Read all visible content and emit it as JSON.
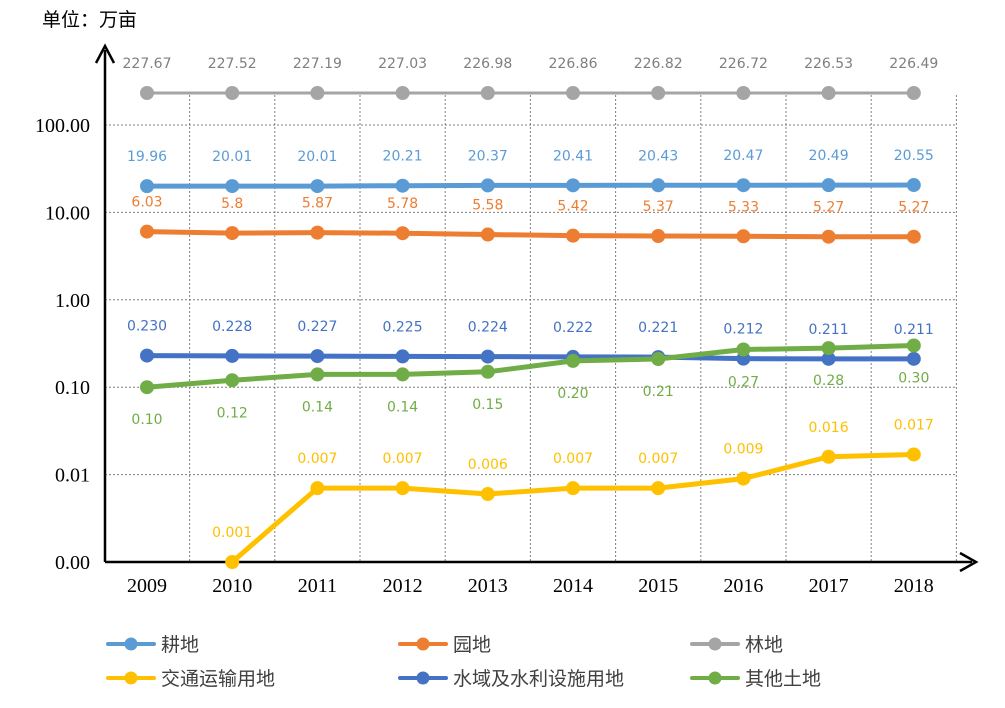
{
  "chart_data": {
    "type": "line",
    "title": "",
    "unit_label": "单位：万亩",
    "xlabel": "",
    "ylabel": "",
    "y_scale": "log",
    "ylim": [
      0.001,
      100
    ],
    "grid": true,
    "legend_position": "bottom",
    "categories": [
      "2009",
      "2010",
      "2011",
      "2012",
      "2013",
      "2014",
      "2015",
      "2016",
      "2017",
      "2018"
    ],
    "y_ticks": [
      {
        "value": 0.001,
        "label": "0.00"
      },
      {
        "value": 0.01,
        "label": "0.01"
      },
      {
        "value": 0.1,
        "label": "0.10"
      },
      {
        "value": 1,
        "label": "1.00"
      },
      {
        "value": 10,
        "label": "10.00"
      },
      {
        "value": 100,
        "label": "100.00"
      }
    ],
    "series": [
      {
        "name": "耕地",
        "color": "#5b9bd5",
        "label_pos": "above",
        "values": [
          19.96,
          20.01,
          20.01,
          20.21,
          20.37,
          20.41,
          20.43,
          20.47,
          20.49,
          20.55
        ],
        "labels": [
          "19.96",
          "20.01",
          "20.01",
          "20.21",
          "20.37",
          "20.41",
          "20.43",
          "20.47",
          "20.49",
          "20.55"
        ]
      },
      {
        "name": "园地",
        "color": "#ed7d31",
        "label_pos": "above",
        "values": [
          6.03,
          5.8,
          5.87,
          5.78,
          5.58,
          5.42,
          5.37,
          5.33,
          5.27,
          5.27
        ],
        "labels": [
          "6.03",
          "5.8",
          "5.87",
          "5.78",
          "5.58",
          "5.42",
          "5.37",
          "5.33",
          "5.27",
          "5.27"
        ]
      },
      {
        "name": "林地",
        "color": "#a5a5a5",
        "label_pos": "above",
        "plot_mode": "top_band",
        "values": [
          227.67,
          227.52,
          227.19,
          227.03,
          226.98,
          226.86,
          226.82,
          226.72,
          226.53,
          226.49
        ],
        "labels": [
          "227.67",
          "227.52",
          "227.19",
          "227.03",
          "226.98",
          "226.86",
          "226.82",
          "226.72",
          "226.53",
          "226.49"
        ]
      },
      {
        "name": "交通运输用地",
        "color": "#ffc000",
        "label_pos": "above",
        "values": [
          null,
          0.001,
          0.007,
          0.007,
          0.006,
          0.007,
          0.007,
          0.009,
          0.016,
          0.017
        ],
        "labels": [
          null,
          "0.001",
          "0.007",
          "0.007",
          "0.006",
          "0.007",
          "0.007",
          "0.009",
          "0.016",
          "0.017"
        ]
      },
      {
        "name": "水域及水利设施用地",
        "color": "#4472c4",
        "label_pos": "above",
        "values": [
          0.23,
          0.228,
          0.227,
          0.225,
          0.224,
          0.222,
          0.221,
          0.212,
          0.211,
          0.211
        ],
        "labels": [
          "0.230",
          "0.228",
          "0.227",
          "0.225",
          "0.224",
          "0.222",
          "0.221",
          "0.212",
          "0.211",
          "0.211"
        ]
      },
      {
        "name": "其他土地",
        "color": "#70ad47",
        "label_pos": "below",
        "values": [
          0.1,
          0.12,
          0.14,
          0.14,
          0.15,
          0.2,
          0.21,
          0.27,
          0.28,
          0.3
        ],
        "labels": [
          "0.10",
          "0.12",
          "0.14",
          "0.14",
          "0.15",
          "0.20",
          "0.21",
          "0.27",
          "0.28",
          "0.30"
        ]
      }
    ],
    "legend": [
      {
        "name": "耕地",
        "color": "#5b9bd5"
      },
      {
        "name": "园地",
        "color": "#ed7d31"
      },
      {
        "name": "林地",
        "color": "#a5a5a5"
      },
      {
        "name": "交通运输用地",
        "color": "#ffc000"
      },
      {
        "name": "水域及水利设施用地",
        "color": "#4472c4"
      },
      {
        "name": "其他土地",
        "color": "#70ad47"
      }
    ]
  }
}
